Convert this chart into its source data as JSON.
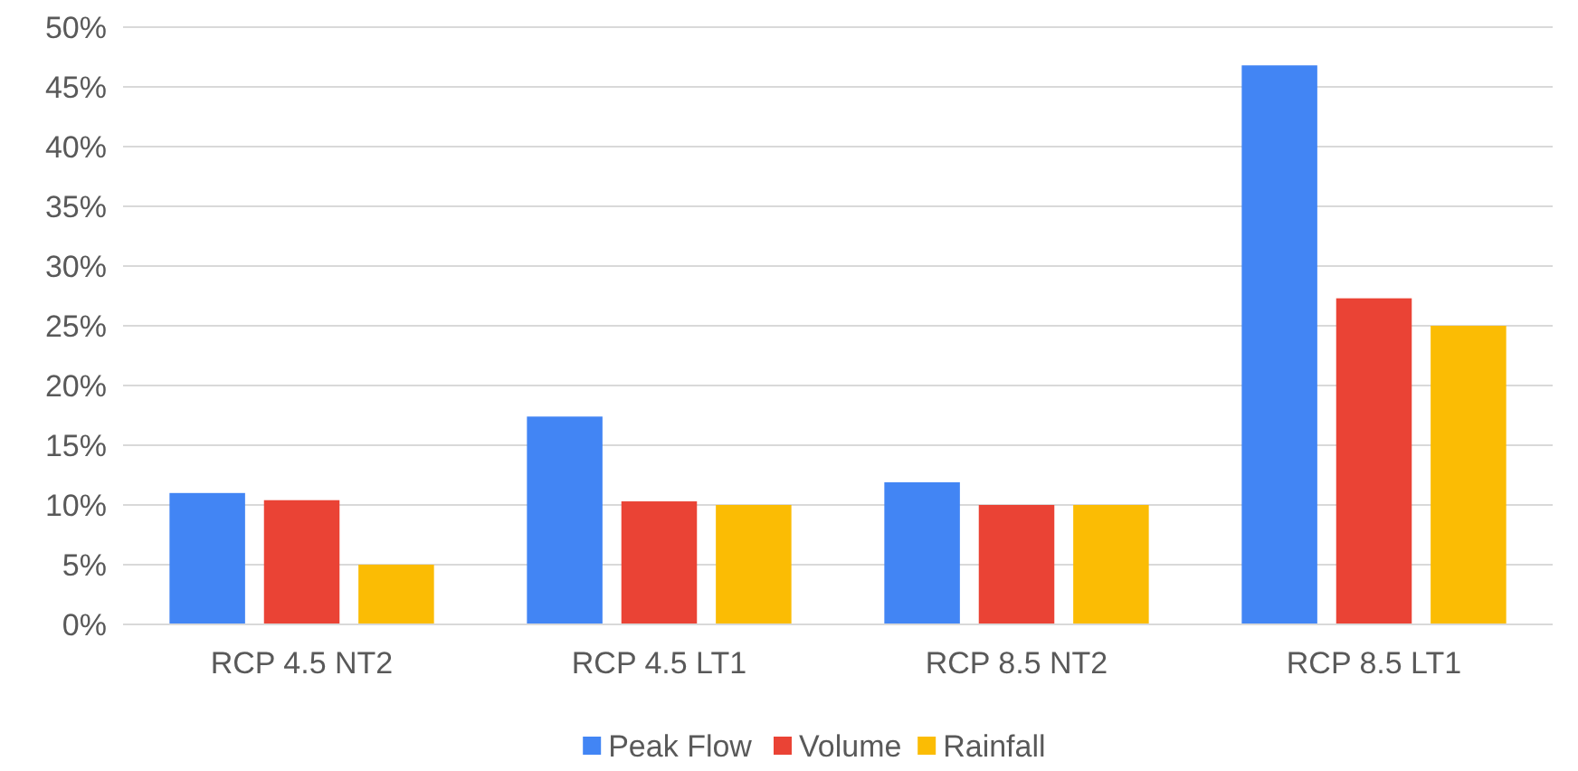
{
  "chart_data": {
    "type": "bar",
    "categories": [
      "RCP 4.5 NT2",
      "RCP 4.5 LT1",
      "RCP 8.5 NT2",
      "RCP 8.5 LT1"
    ],
    "series": [
      {
        "name": "Peak Flow",
        "color": "#4285f4",
        "values": [
          11,
          17.4,
          11.9,
          46.8
        ]
      },
      {
        "name": "Volume",
        "color": "#ea4335",
        "values": [
          10.4,
          10.3,
          10,
          27.3
        ]
      },
      {
        "name": "Rainfall",
        "color": "#fbbc04",
        "values": [
          5,
          10,
          10,
          25
        ]
      }
    ],
    "ylim": [
      0,
      50
    ],
    "yticks": [
      {
        "value": 0,
        "label": "0%"
      },
      {
        "value": 5,
        "label": "5%"
      },
      {
        "value": 10,
        "label": "10%"
      },
      {
        "value": 15,
        "label": "15%"
      },
      {
        "value": 20,
        "label": "20%"
      },
      {
        "value": 25,
        "label": "25%"
      },
      {
        "value": 30,
        "label": "30%"
      },
      {
        "value": 35,
        "label": "35%"
      },
      {
        "value": 40,
        "label": "40%"
      },
      {
        "value": 45,
        "label": "45%"
      },
      {
        "value": 50,
        "label": "50%"
      }
    ],
    "grid": "y",
    "legend": "bottom"
  }
}
